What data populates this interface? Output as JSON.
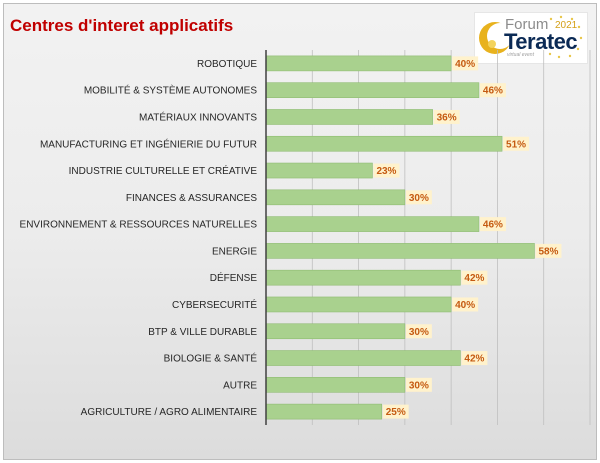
{
  "title": "Centres d'interet applicatifs",
  "logo": {
    "word1": "Forum",
    "word2": "Teratec",
    "year": "2021",
    "tagline": "virtual event"
  },
  "colors": {
    "title": "#c00000",
    "bar": "#a9d18e",
    "bar_border": "#8fbc72",
    "label_bg": "#fff2cc",
    "label_text": "#c55a11",
    "gridline": "#bfbfbf",
    "axis": "#404040",
    "background_top": "#f2f2f2",
    "background_bottom": "#dcdcdc"
  },
  "chart_data": {
    "type": "bar",
    "orientation": "horizontal",
    "title": "Centres d'interet applicatifs",
    "categories": [
      "ROBOTIQUE",
      "MOBILITÉ & SYSTÈME AUTONOMES",
      "MATÉRIAUX INNOVANTS",
      "MANUFACTURING ET INGÉNIERIE DU FUTUR",
      "INDUSTRIE CULTURELLE ET CRÉATIVE",
      "FINANCES & ASSURANCES",
      "ENVIRONNEMENT & RESSOURCES NATURELLES",
      "ENERGIE",
      "DÉFENSE",
      "CYBERSECURITÉ",
      "BTP & VILLE DURABLE",
      "BIOLOGIE & SANTÉ",
      "AUTRE",
      "AGRICULTURE / AGRO ALIMENTAIRE"
    ],
    "values": [
      40,
      46,
      36,
      51,
      23,
      30,
      46,
      58,
      42,
      40,
      30,
      42,
      30,
      25
    ],
    "value_labels": [
      "40%",
      "46%",
      "36%",
      "51%",
      "23%",
      "30%",
      "46%",
      "58%",
      "42%",
      "40%",
      "30%",
      "42%",
      "30%",
      "25%"
    ],
    "xlim": [
      0,
      70
    ],
    "grid": true,
    "legend": "none"
  }
}
